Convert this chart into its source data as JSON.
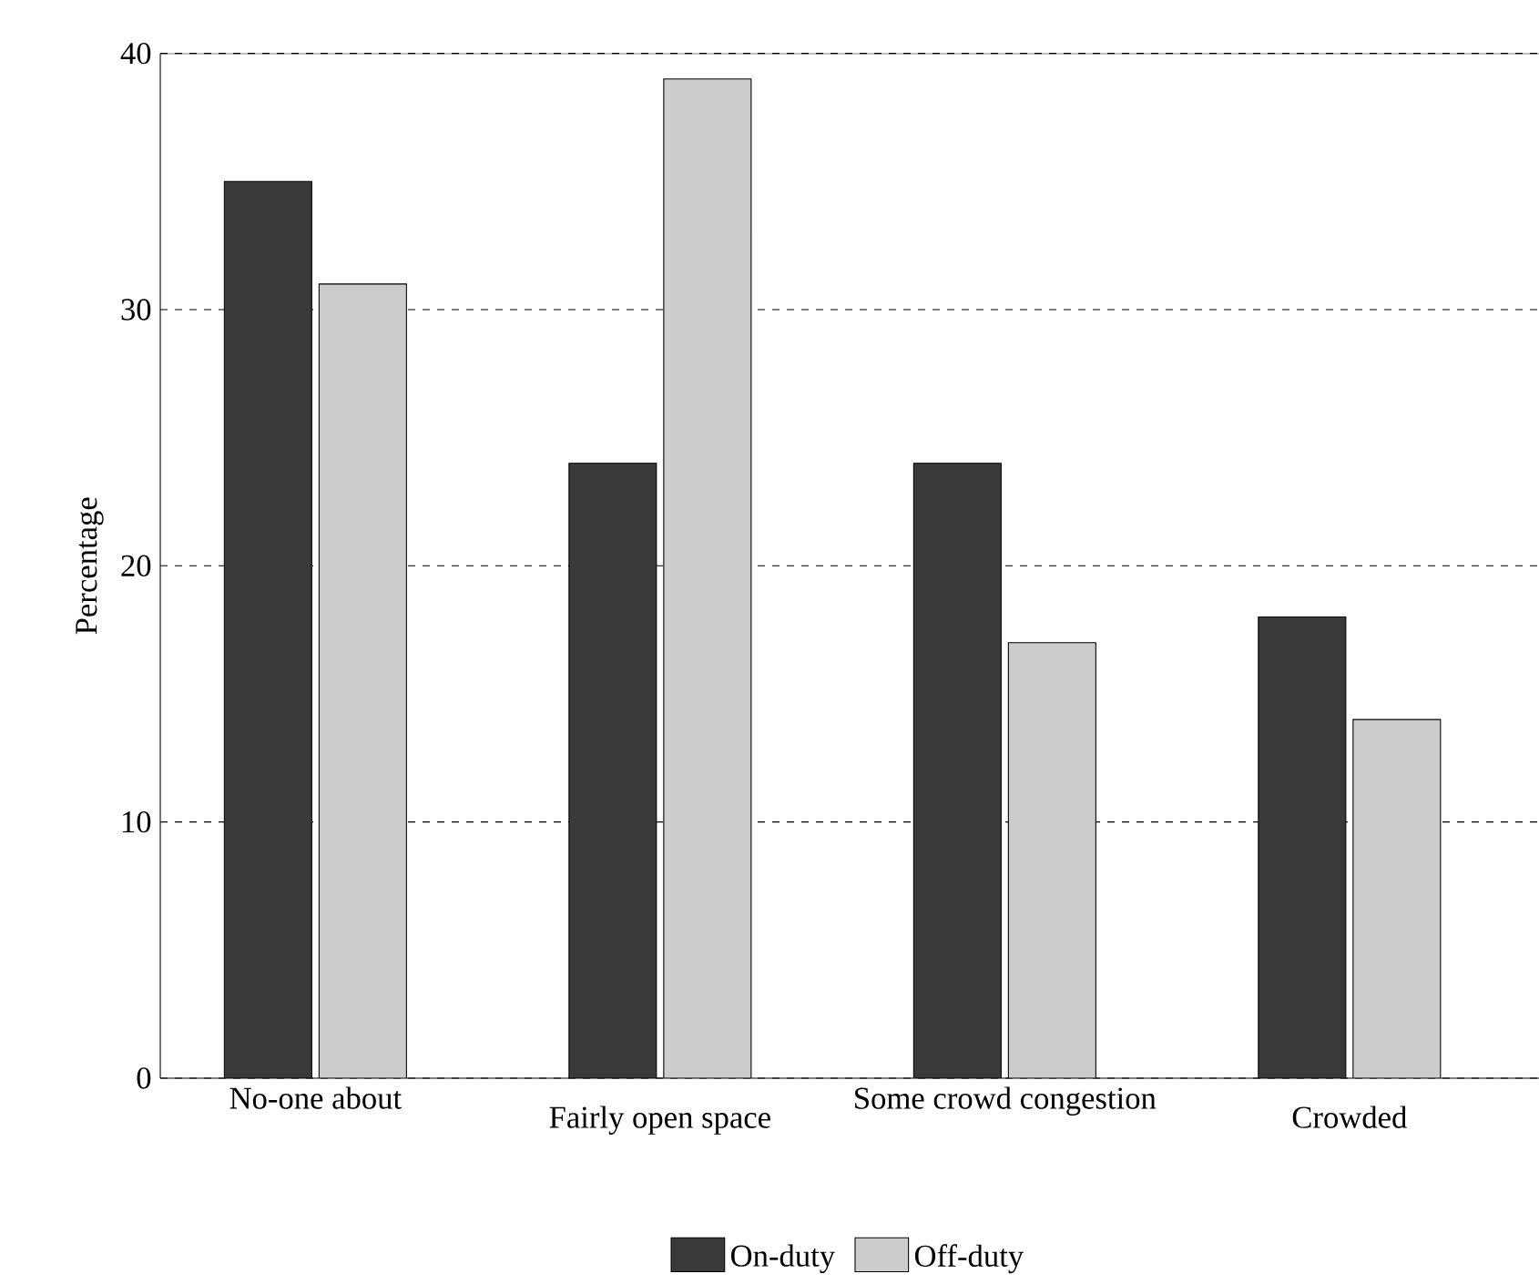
{
  "chart_data": {
    "type": "bar",
    "ylabel": "Percentage",
    "categories": [
      "No-one about",
      "Fairly open space",
      "Some crowd congestion",
      "Crowded"
    ],
    "series": [
      {
        "name": "On-duty",
        "color": "#3a3a3a",
        "values": [
          35,
          24,
          24,
          18
        ]
      },
      {
        "name": "Off-duty",
        "color": "#cccccc",
        "values": [
          31,
          39,
          17,
          14
        ]
      }
    ],
    "ylim": [
      0,
      40
    ],
    "yticks": [
      0,
      10,
      20,
      30,
      40
    ],
    "grid": "y",
    "legend": "bottom"
  }
}
